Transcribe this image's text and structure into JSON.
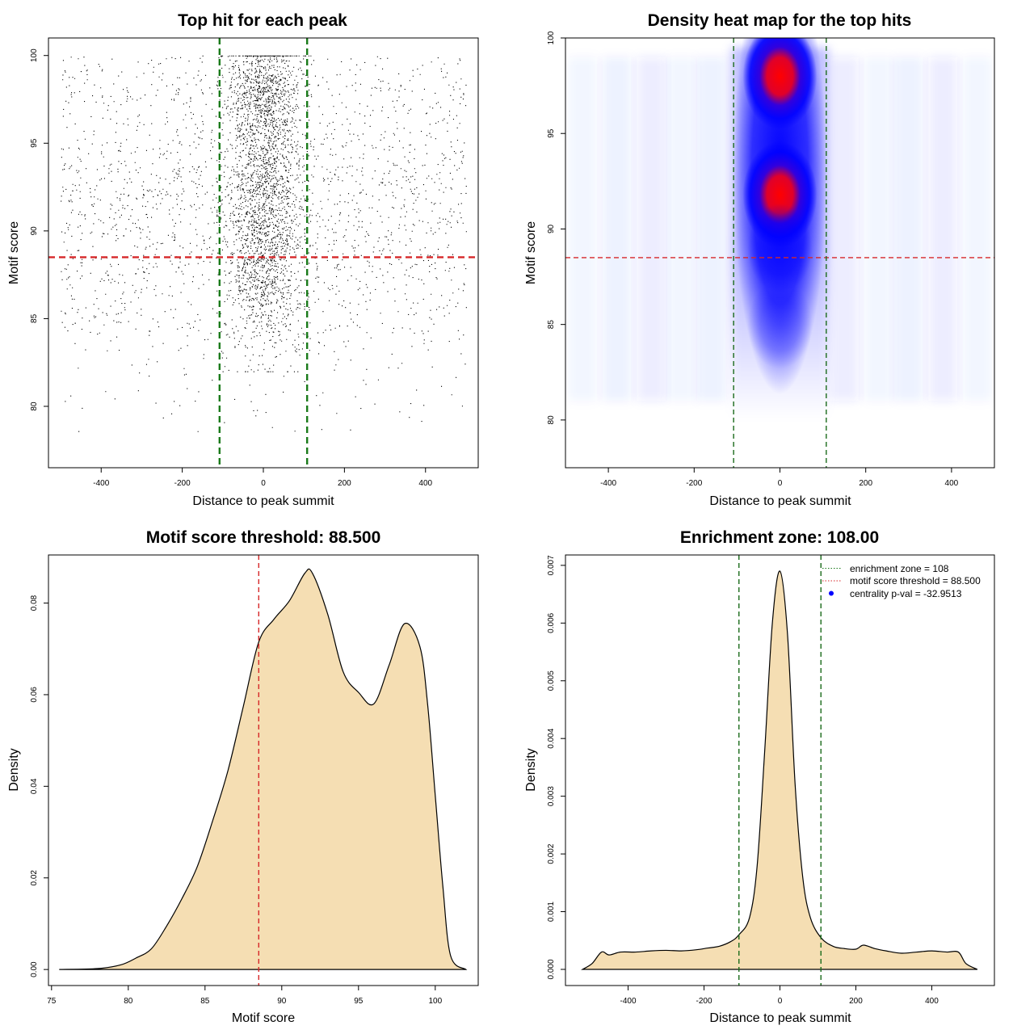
{
  "chart_data": [
    {
      "id": "scatter",
      "type": "scatter",
      "title": "Top hit for each peak",
      "xlabel": "Distance to peak summit",
      "ylabel": "Motif score",
      "xlim": [
        -530,
        530
      ],
      "ylim": [
        76.5,
        101
      ],
      "xticks": [
        -400,
        -200,
        0,
        200,
        400
      ],
      "yticks": [
        80,
        85,
        90,
        95,
        100
      ],
      "n_points_approx": 5200,
      "points_center_sd": 45,
      "central_fraction": 0.62,
      "background_x_range": [
        -500,
        500
      ],
      "central_score_range": [
        82,
        100
      ],
      "background_score_range": [
        78.5,
        100
      ],
      "hlines": [
        {
          "y": 88.5,
          "color": "#d62728"
        }
      ],
      "vlines": [
        {
          "x": -108,
          "color": "#1a7a1a"
        },
        {
          "x": 108,
          "color": "#1a7a1a"
        }
      ]
    },
    {
      "id": "heatmap",
      "type": "heatmap",
      "title": "Density heat map for the top hits",
      "xlabel": "Distance to peak summit",
      "ylabel": "Motif score",
      "xlim": [
        -500,
        500
      ],
      "ylim": [
        77.5,
        100
      ],
      "xticks": [
        -400,
        -200,
        0,
        200,
        400
      ],
      "yticks": [
        80,
        85,
        90,
        95,
        100
      ],
      "hotspots": [
        {
          "x": 0,
          "y": 98.0,
          "intensity": 1.0
        },
        {
          "x": 0,
          "y": 91.8,
          "intensity": 1.0
        },
        {
          "x": 0,
          "y": 89.0,
          "intensity": 0.55
        },
        {
          "x": 0,
          "y": 85.0,
          "intensity": 0.25
        }
      ],
      "colors": [
        "#ffffff",
        "#0000ff",
        "#ff0000"
      ],
      "hlines": [
        {
          "y": 88.5,
          "color": "#d62728"
        }
      ],
      "vlines": [
        {
          "x": -108,
          "color": "#1a6a1a"
        },
        {
          "x": 108,
          "color": "#1a6a1a"
        }
      ]
    },
    {
      "id": "score_density",
      "type": "area",
      "title": "Motif score threshold: 88.500",
      "xlabel": "Motif score",
      "ylabel": "Density",
      "xlim": [
        74.8,
        102.8
      ],
      "ylim": [
        -0.0035,
        0.0905
      ],
      "xticks": [
        75,
        80,
        85,
        90,
        95,
        100
      ],
      "yticks": [
        0.0,
        0.02,
        0.04,
        0.06,
        0.08
      ],
      "ytick_labels": [
        "0.00",
        "0.02",
        "0.04",
        "0.06",
        "0.08"
      ],
      "x": [
        75.5,
        78,
        79.5,
        80.5,
        81.5,
        82.5,
        83.5,
        84.5,
        85.5,
        86.5,
        87.5,
        88.5,
        89.5,
        90.5,
        91.5,
        92,
        93,
        94,
        95,
        96,
        97,
        98,
        99,
        99.5,
        100,
        100.5,
        101,
        102
      ],
      "y": [
        0,
        0.0002,
        0.001,
        0.0025,
        0.0045,
        0.0095,
        0.0155,
        0.0225,
        0.0325,
        0.0435,
        0.0575,
        0.0715,
        0.0765,
        0.0805,
        0.0865,
        0.0865,
        0.0775,
        0.065,
        0.0605,
        0.058,
        0.0665,
        0.0755,
        0.0705,
        0.058,
        0.038,
        0.018,
        0.003,
        0
      ],
      "fill": "#f5deb3",
      "vlines": [
        {
          "x": 88.5,
          "color": "#d62728"
        }
      ]
    },
    {
      "id": "position_density",
      "type": "area",
      "title": "Enrichment zone: 108.00",
      "xlabel": "Distance to peak summit",
      "ylabel": "Density",
      "xlim": [
        -565,
        565
      ],
      "ylim": [
        -0.00028,
        0.00718
      ],
      "xticks": [
        -400,
        -200,
        0,
        200,
        400
      ],
      "yticks": [
        0.0,
        0.001,
        0.002,
        0.003,
        0.004,
        0.005,
        0.006,
        0.007
      ],
      "ytick_labels": [
        "0.000",
        "0.001",
        "0.002",
        "0.003",
        "0.004",
        "0.005",
        "0.006",
        "0.007"
      ],
      "x": [
        -520,
        -495,
        -470,
        -450,
        -420,
        -380,
        -340,
        -300,
        -260,
        -220,
        -190,
        -160,
        -130,
        -108,
        -80,
        -60,
        -40,
        -20,
        0,
        20,
        40,
        60,
        80,
        108,
        140,
        170,
        200,
        220,
        250,
        280,
        320,
        360,
        400,
        440,
        470,
        490,
        520
      ],
      "y": [
        0,
        0.0001,
        0.0003,
        0.00025,
        0.0003,
        0.0003,
        0.00032,
        0.00033,
        0.00032,
        0.00034,
        0.00037,
        0.0004,
        0.00048,
        0.0006,
        0.0009,
        0.0018,
        0.0038,
        0.006,
        0.0069,
        0.0058,
        0.0032,
        0.0016,
        0.0009,
        0.00055,
        0.0004,
        0.00036,
        0.00035,
        0.00042,
        0.00036,
        0.00032,
        0.00028,
        0.0003,
        0.00032,
        0.0003,
        0.0003,
        0.0001,
        0
      ],
      "fill": "#f5deb3",
      "vlines": [
        {
          "x": -108,
          "color": "#1a6a1a"
        },
        {
          "x": 108,
          "color": "#1a6a1a"
        }
      ],
      "legend": {
        "position": "top-right",
        "entries": [
          {
            "label": "enrichment zone = 108",
            "kind": "dotted-line",
            "color": "#1a7a1a"
          },
          {
            "label": "motif score threshold = 88.500",
            "kind": "dotted-line",
            "color": "#d62728"
          },
          {
            "label": "centrality p-val = -32.9513",
            "kind": "point",
            "color": "#0000ff"
          }
        ]
      }
    }
  ]
}
